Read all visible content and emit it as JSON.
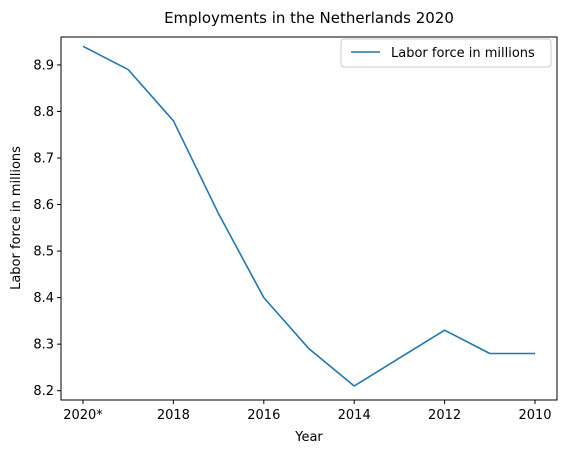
{
  "chart_data": {
    "type": "line",
    "title": "Employments in the Netherlands 2020",
    "xlabel": "Year",
    "ylabel": "Labor force in millions",
    "x_order": "2020 on left, 2010 on right",
    "categories": [
      "2020*",
      "2019",
      "2018",
      "2017",
      "2016",
      "2015",
      "2014",
      "2013",
      "2012",
      "2011",
      "2010"
    ],
    "x_tick_labels": [
      "2020*",
      "2018",
      "2016",
      "2014",
      "2012",
      "2010"
    ],
    "ylim": [
      8.18,
      8.96
    ],
    "y_ticks": [
      8.2,
      8.3,
      8.4,
      8.5,
      8.6,
      8.7,
      8.8,
      8.9
    ],
    "y_tick_labels": [
      "8.2",
      "8.3",
      "8.4",
      "8.5",
      "8.6",
      "8.7",
      "8.8",
      "8.9"
    ],
    "grid": false,
    "legend_position": "top-right",
    "series": [
      {
        "name": "Labor force in millions",
        "color": "#1f77b4",
        "values": [
          8.94,
          8.89,
          8.78,
          8.58,
          8.4,
          8.29,
          8.21,
          8.27,
          8.33,
          8.28,
          8.28
        ]
      }
    ]
  }
}
